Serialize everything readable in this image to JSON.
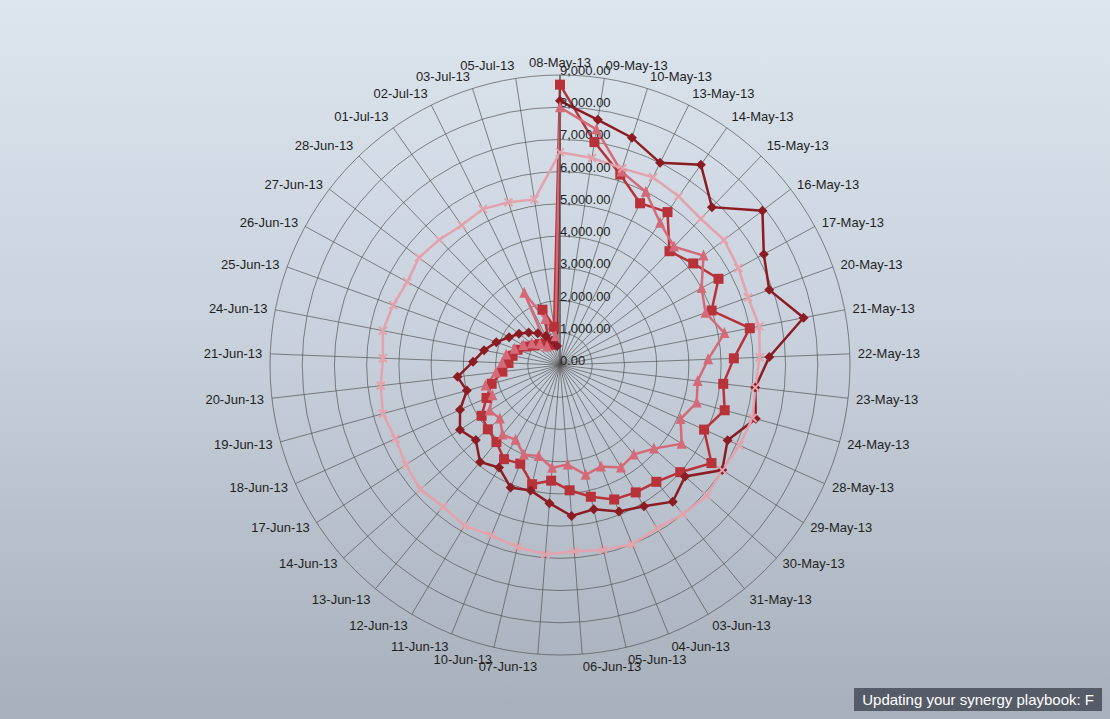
{
  "chart_data": {
    "type": "radar",
    "categories": [
      "08-May-13",
      "09-May-13",
      "10-May-13",
      "13-May-13",
      "14-May-13",
      "15-May-13",
      "16-May-13",
      "17-May-13",
      "20-May-13",
      "21-May-13",
      "22-May-13",
      "23-May-13",
      "24-May-13",
      "28-May-13",
      "29-May-13",
      "30-May-13",
      "31-May-13",
      "03-Jun-13",
      "04-Jun-13",
      "05-Jun-13",
      "06-Jun-13",
      "07-Jun-13",
      "10-Jun-13",
      "11-Jun-13",
      "12-Jun-13",
      "13-Jun-13",
      "14-Jun-13",
      "17-Jun-13",
      "18-Jun-13",
      "19-Jun-13",
      "20-Jun-13",
      "21-Jun-13",
      "24-Jun-13",
      "25-Jun-13",
      "26-Jun-13",
      "27-Jun-13",
      "28-Jun-13",
      "01-Jul-13",
      "02-Jul-13",
      "03-Jul-13",
      "05-Jul-13"
    ],
    "series": [
      {
        "color": "#b8323a",
        "marker": "square",
        "values": [
          8700,
          7000,
          6200,
          5600,
          5800,
          4900,
          5200,
          5600,
          5000,
          6000,
          5400,
          5100,
          5300,
          4900,
          5600,
          5000,
          4700,
          4600,
          4500,
          4200,
          3900,
          3600,
          3800,
          3300,
          3400,
          3100,
          3000,
          2900,
          2500,
          2200,
          1800,
          1600,
          1500,
          1400,
          1200,
          1000,
          900,
          800,
          700,
          1800,
          1200
        ]
      },
      {
        "color": "#8c1c24",
        "marker": "diamond",
        "values": [
          8200,
          7700,
          7400,
          7000,
          7600,
          6800,
          7900,
          7200,
          6900,
          7700,
          6500,
          6100,
          6300,
          5700,
          6000,
          5200,
          5500,
          5100,
          4900,
          4600,
          4700,
          4300,
          4000,
          4100,
          3700,
          3900,
          3500,
          3700,
          3400,
          3000,
          3200,
          2700,
          2400,
          2100,
          1800,
          1600,
          1400,
          1200,
          1000,
          800,
          600
        ]
      },
      {
        "color": "#d46a78",
        "marker": "triangle",
        "values": [
          8000,
          7400,
          6300,
          6000,
          5400,
          5100,
          5600,
          5000,
          4800,
          5200,
          4600,
          4300,
          4400,
          4100,
          4500,
          3900,
          3600,
          3700,
          3400,
          3500,
          3100,
          3200,
          2900,
          3000,
          2700,
          2800,
          2500,
          2600,
          2300,
          2400,
          2000,
          1800,
          1700,
          1500,
          1300,
          1100,
          900,
          700,
          2500,
          1500,
          900
        ]
      },
      {
        "color": "#e3a2ac",
        "marker": "x",
        "values": [
          6600,
          6500,
          6400,
          6500,
          6400,
          6300,
          6400,
          6300,
          6200,
          6300,
          6200,
          6100,
          6200,
          6100,
          6000,
          6100,
          6000,
          5900,
          6000,
          5900,
          5800,
          5900,
          5800,
          5700,
          5800,
          5700,
          5800,
          5700,
          5600,
          5700,
          5600,
          5500,
          5600,
          5500,
          5400,
          5500,
          5400,
          5300,
          5400,
          5300,
          5200
        ]
      }
    ],
    "ylim": [
      0,
      9000
    ],
    "yticks": [
      {
        "value": 0,
        "label": "0.00"
      },
      {
        "value": 1000,
        "label": "1,000.00"
      },
      {
        "value": 2000,
        "label": "2,000.00"
      },
      {
        "value": 3000,
        "label": "3,000.00"
      },
      {
        "value": 4000,
        "label": "4,000.00"
      },
      {
        "value": 5000,
        "label": "5,000.00"
      },
      {
        "value": 6000,
        "label": "6,000.00"
      },
      {
        "value": 7000,
        "label": "7,000.00"
      },
      {
        "value": 8000,
        "label": "8,000.00"
      },
      {
        "value": 9000,
        "label": "9,000.00"
      }
    ],
    "grid": true,
    "annotations": [
      "Updating your synergy playbook: F"
    ]
  }
}
